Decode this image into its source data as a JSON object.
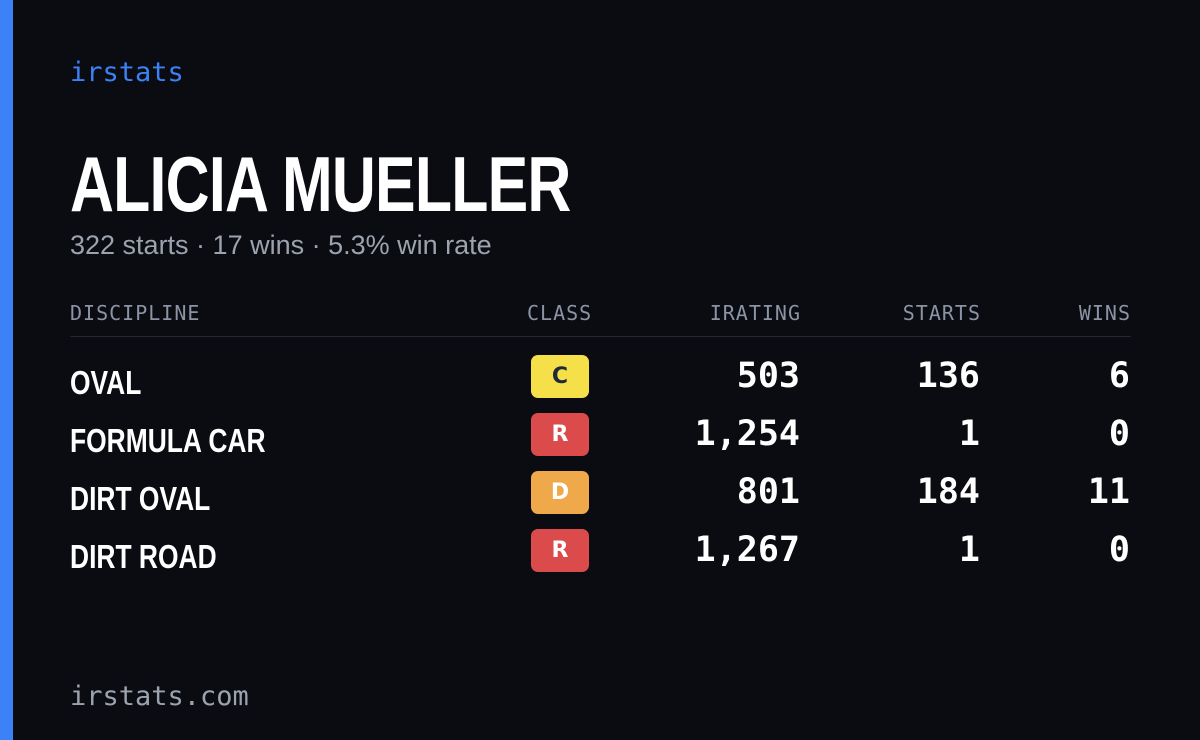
{
  "brand": "irstats",
  "driver": {
    "name": "ALICIA MUELLER",
    "summary": "322 starts · 17 wins · 5.3% win rate"
  },
  "table": {
    "headers": {
      "discipline": "DISCIPLINE",
      "class": "CLASS",
      "irating": "IRATING",
      "starts": "STARTS",
      "wins": "WINS"
    },
    "rows": [
      {
        "discipline": "OVAL",
        "class": "C",
        "class_bg": "#f5e04a",
        "class_fg": "#1f2937",
        "irating": "503",
        "starts": "136",
        "wins": "6"
      },
      {
        "discipline": "FORMULA CAR",
        "class": "R",
        "class_bg": "#dc4b4b",
        "class_fg": "#ffffff",
        "irating": "1,254",
        "starts": "1",
        "wins": "0"
      },
      {
        "discipline": "DIRT OVAL",
        "class": "D",
        "class_bg": "#f0a94a",
        "class_fg": "#ffffff",
        "irating": "801",
        "starts": "184",
        "wins": "11"
      },
      {
        "discipline": "DIRT ROAD",
        "class": "R",
        "class_bg": "#dc4b4b",
        "class_fg": "#ffffff",
        "irating": "1,267",
        "starts": "1",
        "wins": "0"
      }
    ]
  },
  "footer": {
    "domain": "irstats.com"
  },
  "colors": {
    "accent": "#3b82f6",
    "background": "#0a0c12"
  }
}
